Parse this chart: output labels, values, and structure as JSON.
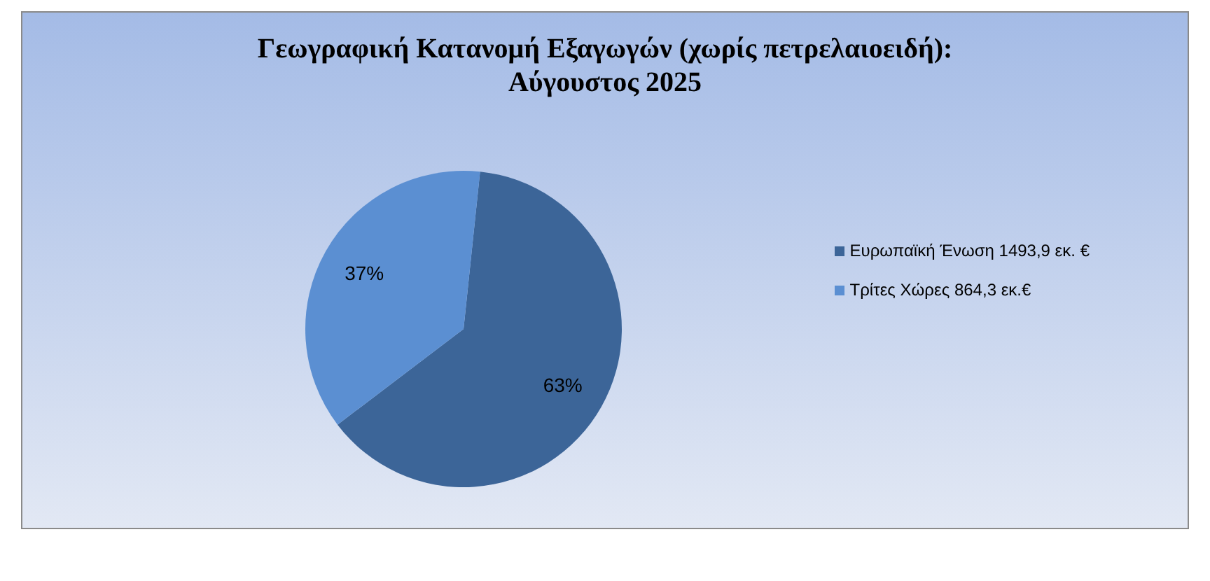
{
  "chart_data": {
    "type": "pie",
    "title": "Γεωγραφική Κατανομή Εξαγωγών (χωρίς πετρελαιοειδή): Αύγουστος 2025",
    "categories": [
      "Ευρωπαϊκή Ένωση 1493,9 εκ. €",
      "Τρίτες Χώρες 864,3 εκ.€"
    ],
    "values": [
      63,
      37
    ],
    "colors": [
      "#3c6598",
      "#5b8fd2"
    ],
    "value_labels": [
      "63%",
      "37%"
    ],
    "legend": "right"
  }
}
